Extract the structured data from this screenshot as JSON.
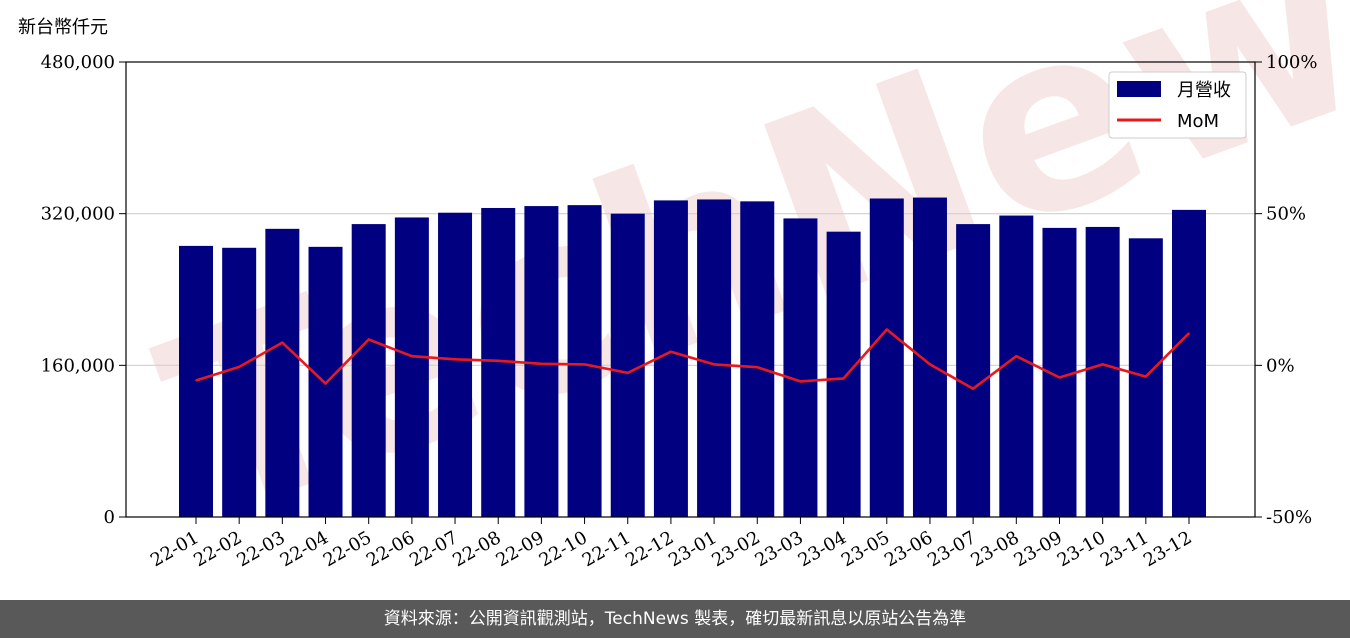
{
  "chart_data": {
    "type": "bar",
    "unit_label": "新台幣仟元",
    "categories": [
      "22-01",
      "22-02",
      "22-03",
      "22-04",
      "22-05",
      "22-06",
      "22-07",
      "22-08",
      "22-09",
      "22-10",
      "22-11",
      "22-12",
      "23-01",
      "23-02",
      "23-03",
      "23-04",
      "23-05",
      "23-06",
      "23-07",
      "23-08",
      "23-09",
      "23-10",
      "23-11",
      "23-12"
    ],
    "series": [
      {
        "name": "月營收",
        "type": "bar",
        "axis": "left",
        "color": "#000080",
        "values": [
          286000,
          284000,
          304000,
          285000,
          309000,
          316000,
          321000,
          326000,
          328000,
          329000,
          320000,
          334000,
          335000,
          333000,
          315000,
          301000,
          336000,
          337000,
          309000,
          318000,
          305000,
          306000,
          294000,
          324000
        ]
      },
      {
        "name": "MoM",
        "type": "line",
        "axis": "right",
        "color": "#e8191e",
        "values": [
          -5.0,
          -0.5,
          7.5,
          -6.0,
          8.5,
          3.0,
          2.0,
          1.5,
          0.5,
          0.3,
          -2.5,
          4.5,
          0.3,
          -0.6,
          -5.3,
          -4.3,
          11.8,
          0.3,
          -7.7,
          3.0,
          -4.0,
          0.3,
          -3.7,
          10.6
        ]
      }
    ],
    "ylim_left": [
      0,
      480000
    ],
    "yticks_left": [
      "0",
      "160,000",
      "320,000",
      "480,000"
    ],
    "ylim_right": [
      -50,
      100
    ],
    "yticks_right": [
      "-50%",
      "0%",
      "50%",
      "100%"
    ],
    "grid": "horizontal",
    "legend": "top-right",
    "watermark": "TechNews"
  },
  "footer": {
    "text": "資料來源：公開資訊觀測站，TechNews 製表，確切最新訊息以原站公告為準"
  }
}
